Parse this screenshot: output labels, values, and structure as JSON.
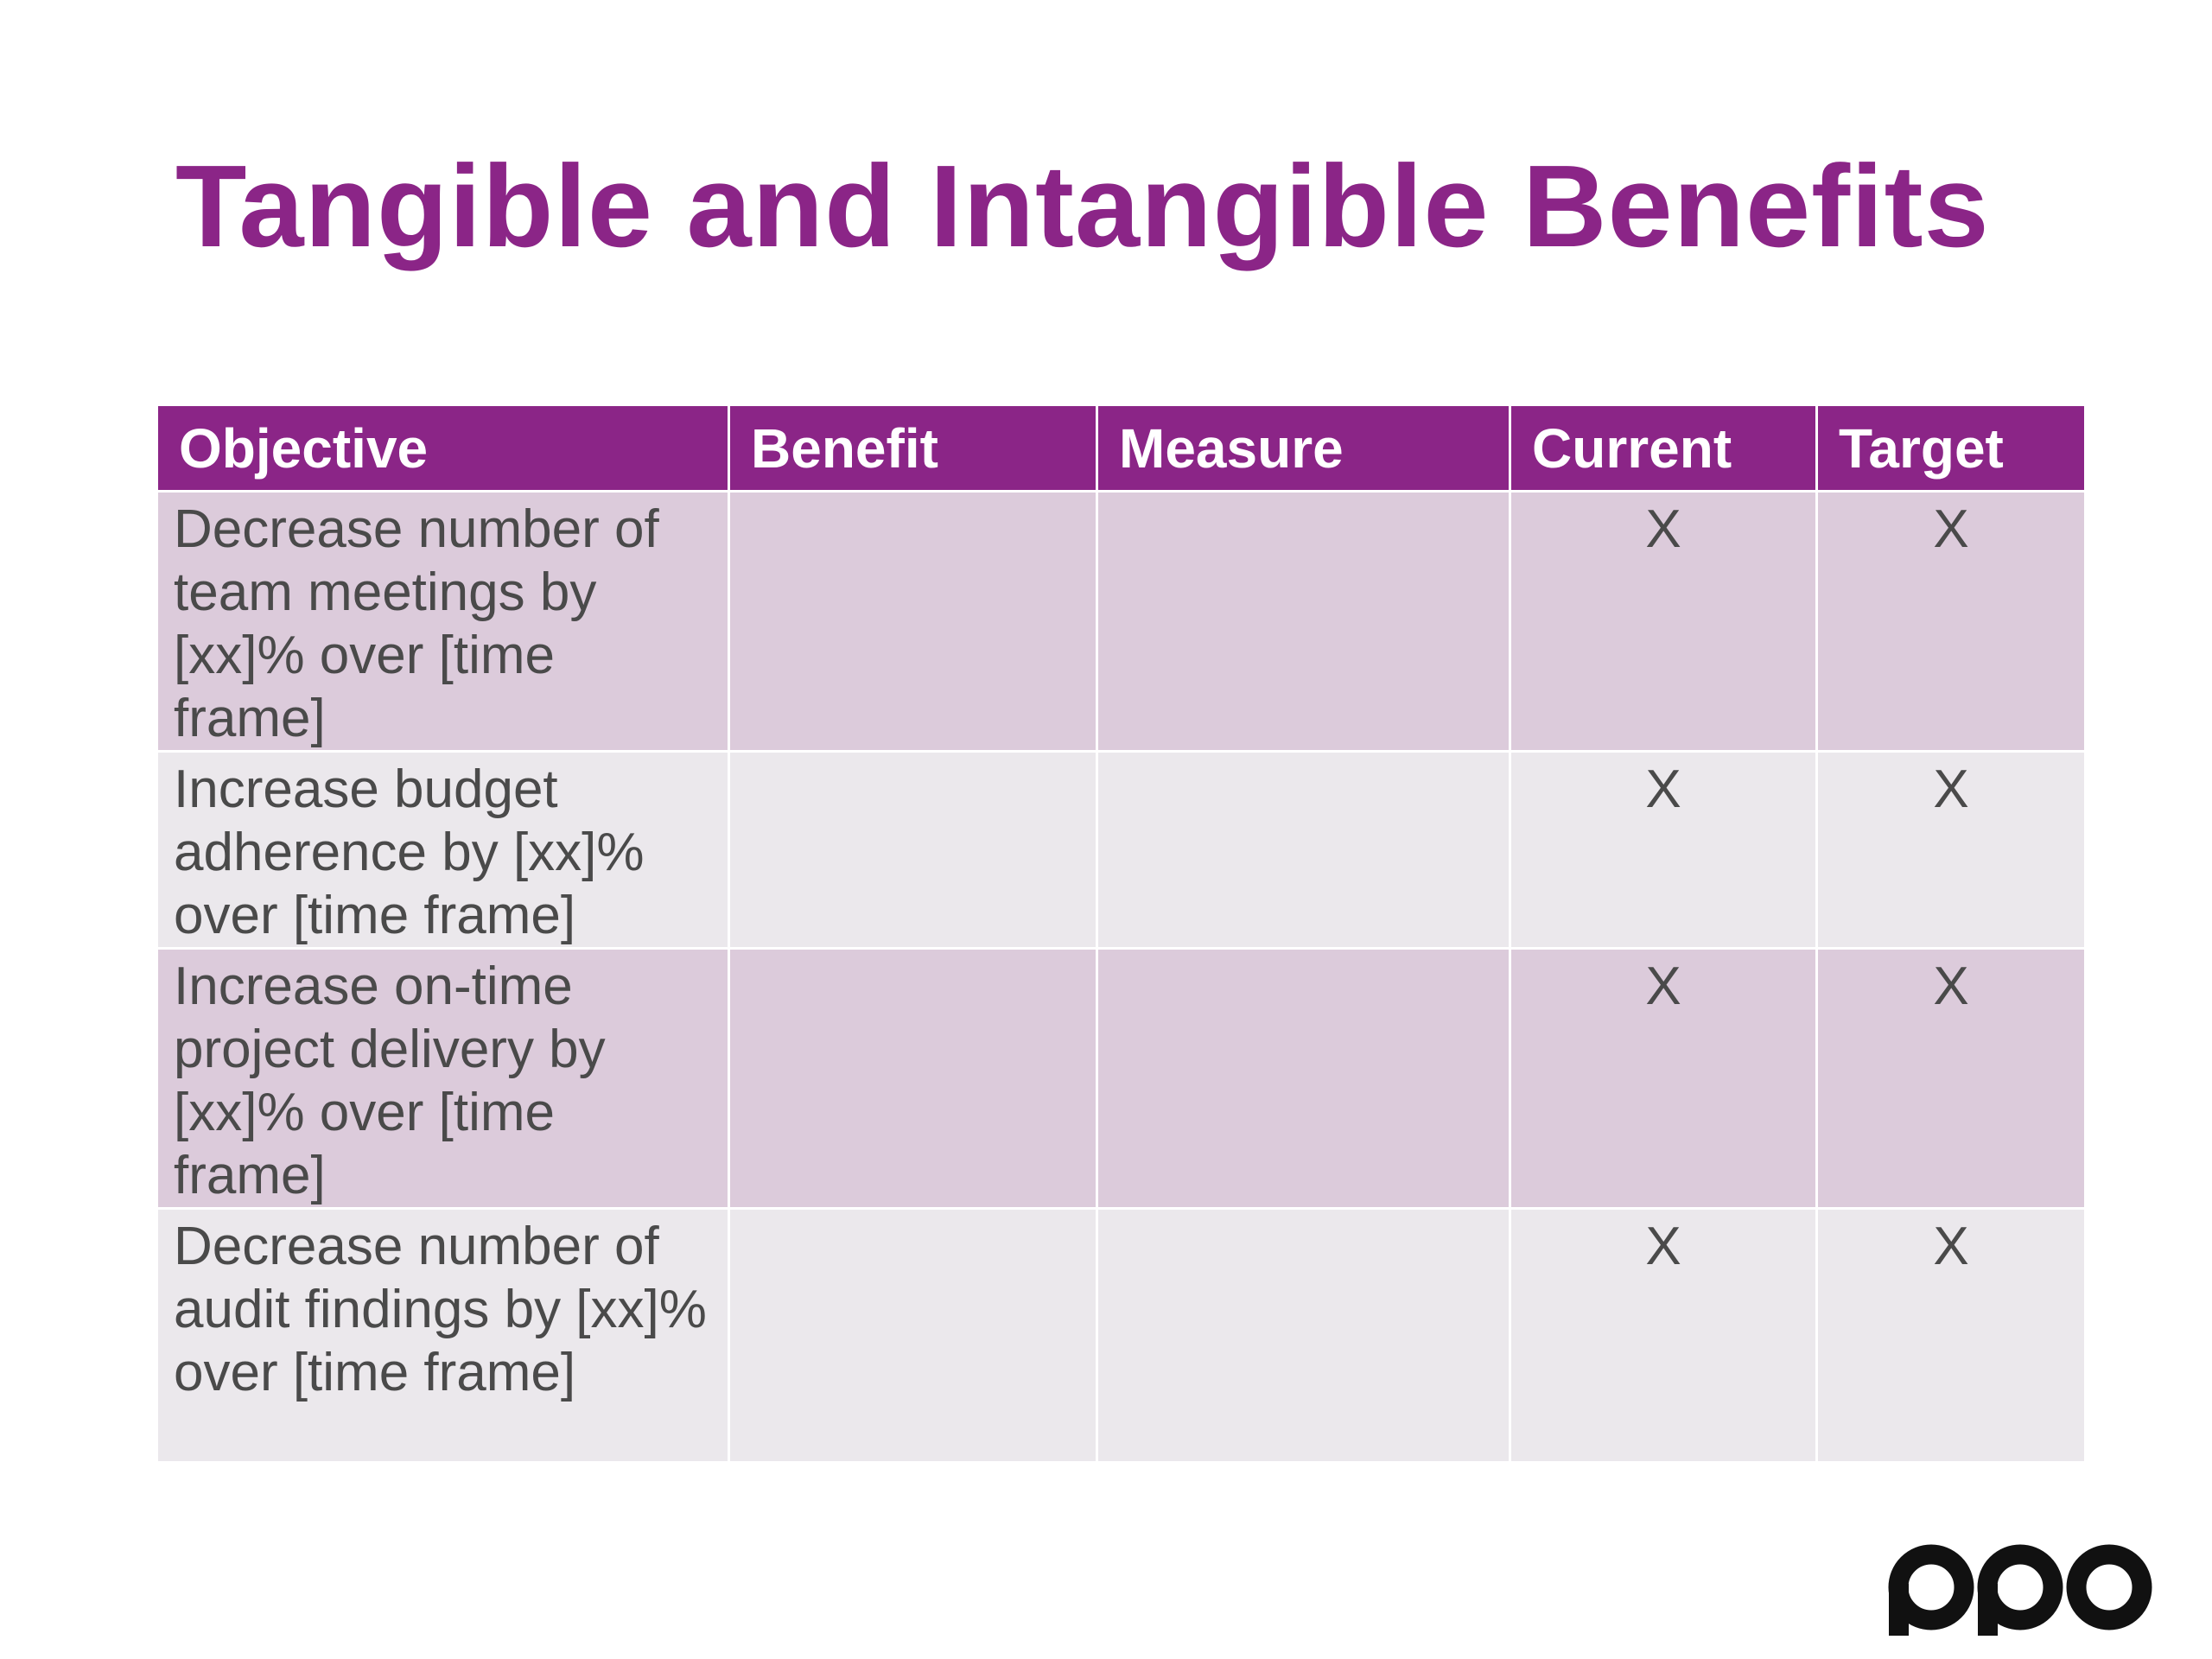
{
  "slide": {
    "title": "Tangible and Intangible Benefits"
  },
  "table": {
    "headers": [
      "Objective",
      "Benefit",
      "Measure",
      "Current",
      "Target"
    ],
    "rows": [
      {
        "objective": "Decrease number of team meetings by [xx]% over [time frame]",
        "benefit": "",
        "measure": "",
        "current": "X",
        "target": "X"
      },
      {
        "objective": "Increase budget adherence by [xx]% over [time frame]",
        "benefit": "",
        "measure": "",
        "current": "X",
        "target": "X"
      },
      {
        "objective": "Increase on-time project delivery by [xx]% over [time frame]",
        "benefit": "",
        "measure": "",
        "current": "X",
        "target": "X"
      },
      {
        "objective": "Decrease number of audit findings by [xx]% over [time frame]",
        "benefit": "",
        "measure": "",
        "current": "X",
        "target": "X"
      }
    ]
  },
  "logo": {
    "text": "ppo",
    "color": "#111111"
  },
  "colors": {
    "accent": "#8B2587",
    "row_odd": "#DCCBDB",
    "row_even": "#EBE8EC"
  }
}
